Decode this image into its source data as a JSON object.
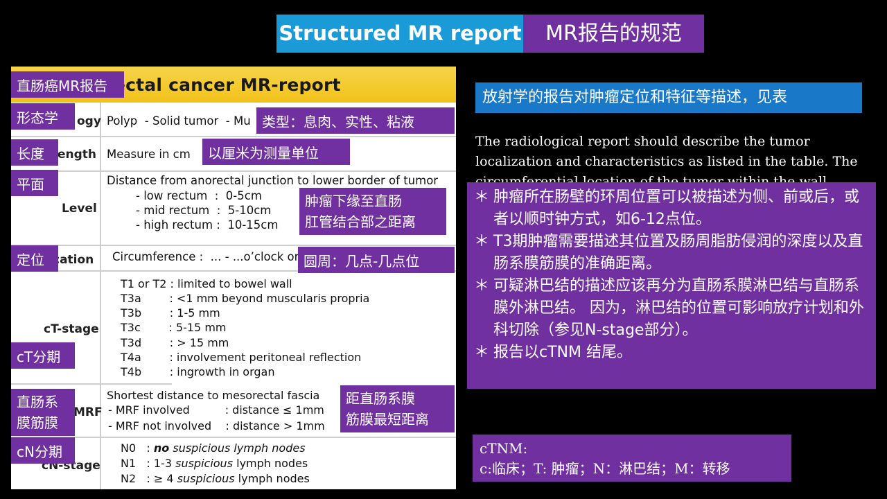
{
  "title": {
    "en": "Structured MR report",
    "zh": "MR报告的规范"
  },
  "table": {
    "heading": "ectal cancer   MR-report",
    "rows": {
      "morphology": {
        "label": "ogy",
        "value": "Polyp  - Solid tumor  - Mu"
      },
      "length": {
        "label": "ength",
        "value": "Measure in cm"
      },
      "level": {
        "label": "Level",
        "line1": "Distance from anorectal junction to lower border of tumor",
        "line2": "- low rectum  :  0-5cm",
        "line3": "- mid rectum  :  5-10cm",
        "line4": "- high rectum :  10-15cm"
      },
      "location": {
        "label": "cation",
        "value": "Circumference :  ... - ...o’clock or"
      },
      "ctstage": {
        "label": "cT-stage",
        "lines": [
          "T1 or T2 : limited to bowel wall",
          "T3a        : <1 mm beyond muscularis propria",
          "T3b        : 1-5 mm",
          "T3c        : 5-15 mm",
          "T3d        : > 15 mm",
          "T4a        : involvement peritoneal reflection",
          "T4b        : ingrowth in organ"
        ]
      },
      "mrf": {
        "label": "MRF",
        "line1": "Shortest distance to mesorectal fascia",
        "line2": "- MRF involved          : distance ≤ 1mm",
        "line3": "- MRF not involved    : distance > 1mm"
      },
      "cnstage": {
        "label": "cN-stage",
        "n0_code": "N0",
        "n0_no": "no",
        "n0_rest": " suspicious lymph nodes",
        "n1_code": "N1",
        "n1_pre": "1-3 ",
        "n1_it": "suspicious",
        "n1_rest": " lymph nodes",
        "n2_code": "N2",
        "n2_pre": "≥ 4 ",
        "n2_it": "suspicious",
        "n2_rest": " lymph nodes"
      }
    }
  },
  "tags": {
    "rectal_mr_report": "直肠癌MR报告",
    "morphology": "形态学",
    "type": "类型：息肉、实性、粘液",
    "length": "长度",
    "measure_unit": "以厘米为测量单位",
    "plane": "平面",
    "distance_line1": "肿瘤下缘至直肠",
    "distance_line2": "肛管结合部之距离",
    "position": "定位",
    "circumference": "圆周：几点-几点位",
    "ct_stage": "cT分期",
    "mesorectal_line1": "直肠系",
    "mesorectal_line2": "膜筋膜",
    "mrf_line1": "距直肠系膜",
    "mrf_line2": "筋膜最短距离",
    "cn_stage": "cN分期"
  },
  "right": {
    "blue_box": "放射学的报告对肿瘤定位和特征等描述，见表",
    "english": "The radiological report should describe the tumor localization and characteristics as listed in the table. The circumferential location of the tumor within the wall",
    "bullets": [
      "肿瘤所在肠壁的环周位置可以被描述为侧、前或后，或者以顺时钟方式，如6-12点位。",
      "T3期肿瘤需要描述其位置及肠周脂肪侵润的深度以及直肠系膜筋膜的准确距离。",
      "可疑淋巴结的描述应该再分为直肠系膜淋巴结与直肠系膜外淋巴结。 因为，淋巴结的位置可影响放疗计划和外科切除（参见N-stage部分）。",
      "报告以cTNM 结尾。"
    ],
    "bullet_symbol": "＊",
    "ctnm_title": "cTNM:",
    "ctnm_desc": "c:临床；T: 肿瘤；N：淋巴结；M：转移"
  },
  "colors": {
    "blue": "#1a9bd7",
    "purple": "#7030a0",
    "yellow": "#f2c21a",
    "background": "#000000"
  }
}
